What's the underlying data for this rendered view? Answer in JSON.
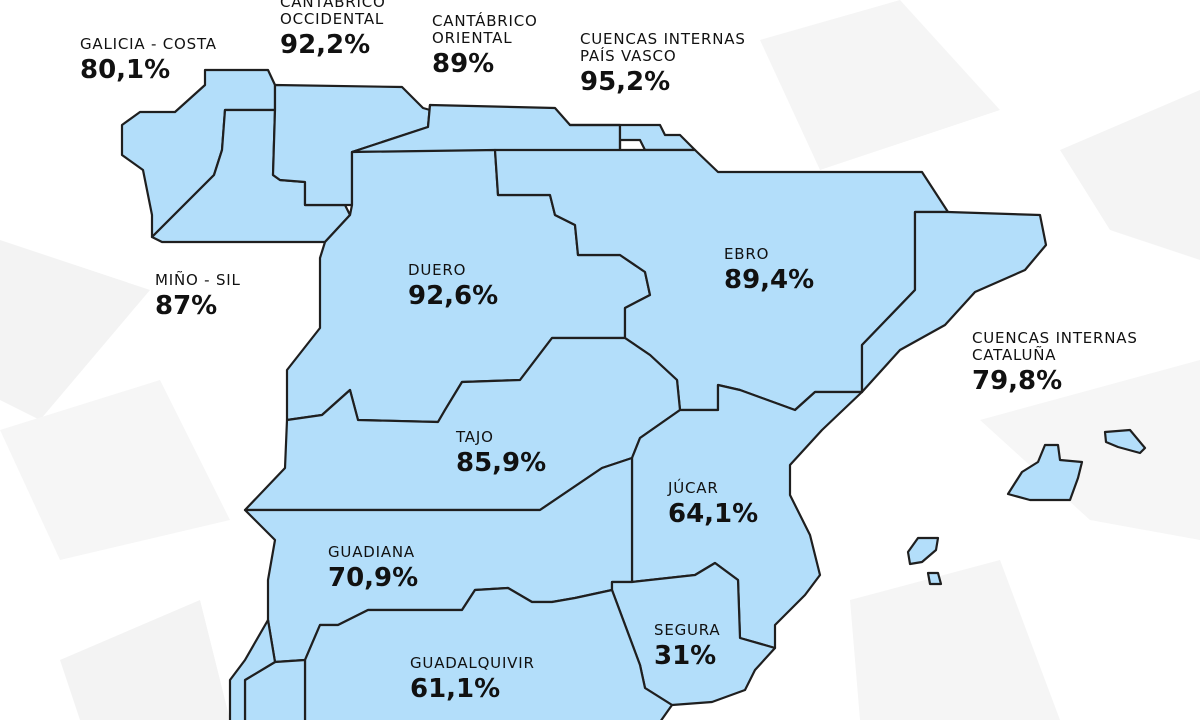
{
  "colors": {
    "basin_fill": "#b3defa",
    "border": "#1f1f1f",
    "background": "#ffffff",
    "background_shapes": "#f1f1f1",
    "text": "#111111"
  },
  "basins": [
    {
      "id": "galicia-costa",
      "name": "GALICIA - COSTA",
      "percent": "80,1%"
    },
    {
      "id": "cantabrico-occidental",
      "name": "CANTÁBRICO OCCIDENTAL",
      "percent": "92,2%"
    },
    {
      "id": "cantabrico-oriental",
      "name": "CANTÁBRICO ORIENTAL",
      "percent": "89%"
    },
    {
      "id": "pais-vasco",
      "name": "CUENCAS INTERNAS PAÍS VASCO",
      "percent": "95,2%"
    },
    {
      "id": "mino-sil",
      "name": "MIÑO - SIL",
      "percent": "87%"
    },
    {
      "id": "duero",
      "name": "DUERO",
      "percent": "92,6%"
    },
    {
      "id": "ebro",
      "name": "EBRO",
      "percent": "89,4%"
    },
    {
      "id": "cataluna",
      "name": "CUENCAS INTERNAS CATALUÑA",
      "percent": "79,8%"
    },
    {
      "id": "tajo",
      "name": "TAJO",
      "percent": "85,9%"
    },
    {
      "id": "jucar",
      "name": "JÚCAR",
      "percent": "64,1%"
    },
    {
      "id": "guadiana",
      "name": "GUADIANA",
      "percent": "70,9%"
    },
    {
      "id": "segura",
      "name": "SEGURA",
      "percent": "31%"
    },
    {
      "id": "guadalquivir",
      "name": "GUADALQUIVIR",
      "percent": "61,1%"
    }
  ]
}
